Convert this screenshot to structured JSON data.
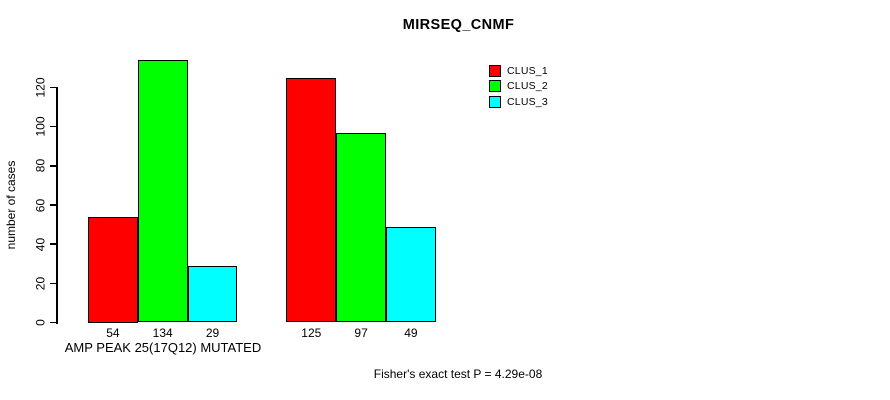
{
  "title": "MIRSEQ_CNMF",
  "chart_data": {
    "type": "bar",
    "title": "MIRSEQ_CNMF",
    "xlabel": "",
    "ylabel": "number of cases",
    "categories": [
      "AMP PEAK 25(17Q12) MUTATED",
      ""
    ],
    "series": [
      {
        "name": "CLUS_1",
        "color": "#FF0000",
        "values": [
          54,
          125
        ]
      },
      {
        "name": "CLUS_2",
        "color": "#00FF00",
        "values": [
          134,
          97
        ]
      },
      {
        "name": "CLUS_3",
        "color": "#00FFFF",
        "values": [
          29,
          49
        ]
      }
    ],
    "yticks": [
      0,
      20,
      40,
      60,
      80,
      100,
      120
    ],
    "ylim": [
      0,
      120
    ],
    "show_bar_values": true,
    "grid": false,
    "legend_position": "top-right",
    "annotation": "Fisher's exact test P = 4.29e-08"
  }
}
